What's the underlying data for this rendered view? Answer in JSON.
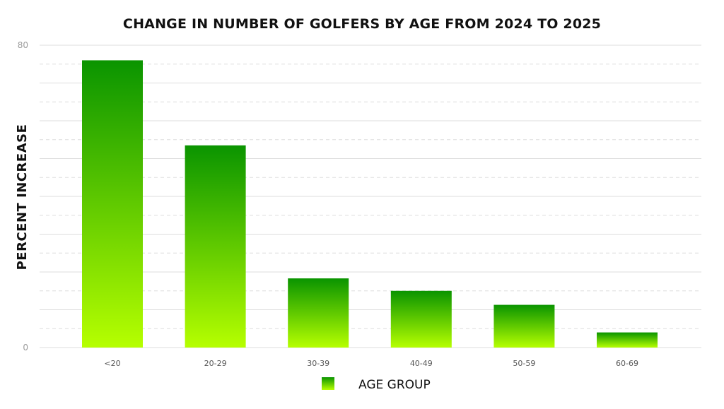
{
  "chart_data": {
    "type": "bar",
    "title": "CHANGE IN NUMBER OF GOLFERS BY AGE FROM 2024 TO 2025",
    "xlabel": "AGE GROUP",
    "ylabel": "PERCENT INCREASE",
    "categories": [
      "<20",
      "20-29",
      "30-39",
      "40-49",
      "50-59",
      "60-69"
    ],
    "series": [
      {
        "name": "AGE GROUP",
        "values": [
          76,
          53.5,
          18.3,
          15,
          11.3,
          4
        ]
      }
    ],
    "ylim": [
      0,
      80
    ],
    "yticks": [
      "0",
      "80"
    ],
    "grid": true,
    "legend": "bottom-center",
    "colors": {
      "bar_top": "#0a9400",
      "bar_bottom": "#b6ff00",
      "grid": "#dddddd"
    }
  }
}
